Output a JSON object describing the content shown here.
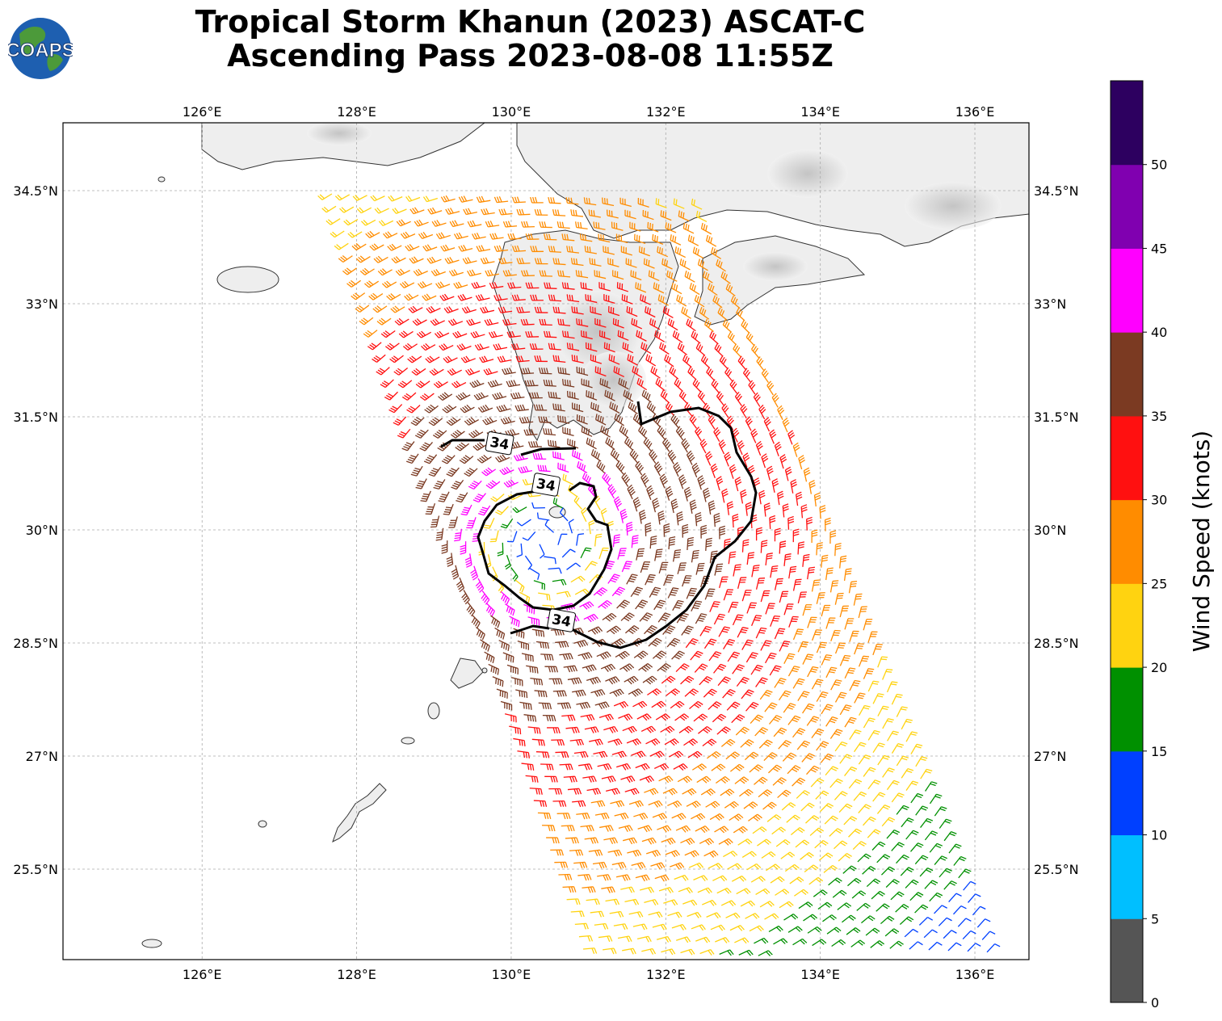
{
  "title": {
    "line1": "Tropical Storm Khanun (2023) ASCAT-C",
    "line2": "Ascending Pass 2023-08-08 11:55Z"
  },
  "logo": {
    "text": "COAPS",
    "icon": "globe-logo-icon"
  },
  "map": {
    "lon_range": [
      124.2,
      136.7
    ],
    "lat_range": [
      24.3,
      35.4
    ],
    "lon_ticks": [
      {
        "value": 126,
        "label": "126°E"
      },
      {
        "value": 128,
        "label": "128°E"
      },
      {
        "value": 130,
        "label": "130°E"
      },
      {
        "value": 132,
        "label": "132°E"
      },
      {
        "value": 134,
        "label": "134°E"
      },
      {
        "value": 136,
        "label": "136°E"
      }
    ],
    "lat_ticks": [
      {
        "value": 34.5,
        "label": "34.5°N"
      },
      {
        "value": 33.0,
        "label": "33°N"
      },
      {
        "value": 31.5,
        "label": "31.5°N"
      },
      {
        "value": 30.0,
        "label": "30°N"
      },
      {
        "value": 28.5,
        "label": "28.5°N"
      },
      {
        "value": 27.0,
        "label": "27°N"
      },
      {
        "value": 25.5,
        "label": "25.5°N"
      }
    ],
    "gridlines": true,
    "storm_center": {
      "lon": 130.45,
      "lat": 29.85
    },
    "contour_labels": [
      {
        "text": "34",
        "lon": 129.85,
        "lat": 31.15
      },
      {
        "text": "34",
        "lon": 130.45,
        "lat": 30.6
      },
      {
        "text": "34",
        "lon": 130.65,
        "lat": 28.8
      }
    ]
  },
  "colorbar": {
    "title": "Wind Speed (knots)",
    "ticks": [
      "0",
      "5",
      "10",
      "15",
      "20",
      "25",
      "30",
      "35",
      "40",
      "45",
      "50"
    ],
    "colors": [
      "#555555",
      "#00bfff",
      "#0040ff",
      "#009000",
      "#ffd310",
      "#ff8c00",
      "#ff1010",
      "#7b3a22",
      "#ff00ff",
      "#8000b0",
      "#2d0060"
    ]
  }
}
